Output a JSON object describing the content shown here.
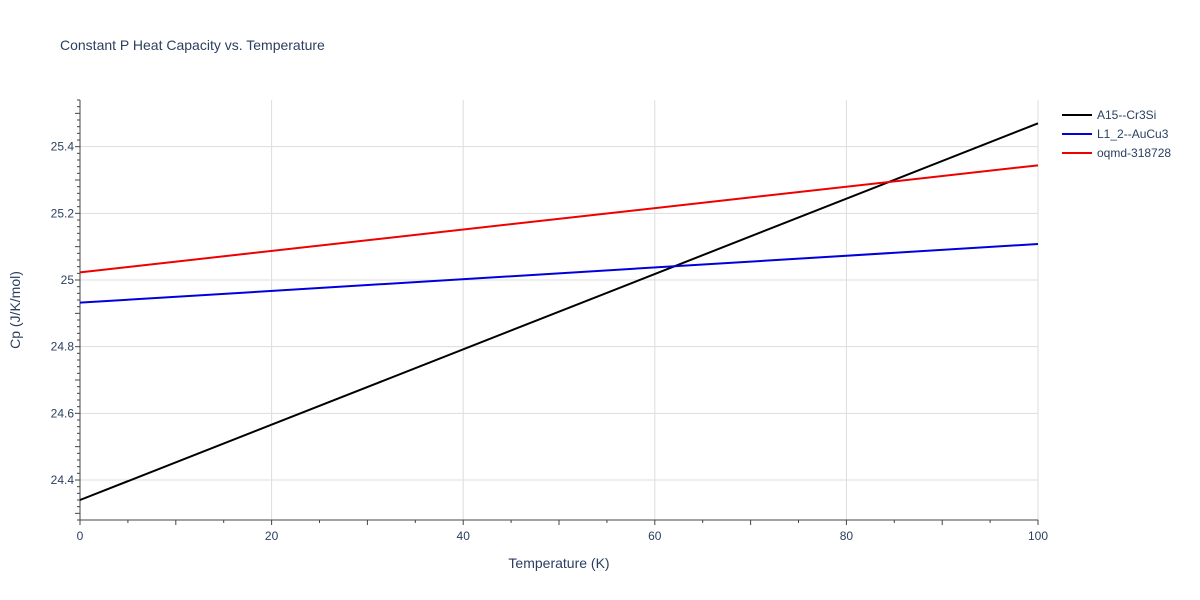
{
  "chart_data": {
    "type": "line",
    "title": "Constant P Heat Capacity vs. Temperature",
    "xlabel": "Temperature (K)",
    "ylabel": "Cp (J/K/mol)",
    "xlim": [
      0,
      100
    ],
    "ylim": [
      24.28,
      25.54
    ],
    "x_ticks": [
      0,
      20,
      40,
      60,
      80,
      100
    ],
    "x_tick_labels": [
      "0",
      "20",
      "40",
      "60",
      "80",
      "100"
    ],
    "y_ticks": [
      24.4,
      24.6,
      24.8,
      25.0,
      25.2,
      25.4
    ],
    "y_tick_labels": [
      "24.4",
      "24.6",
      "24.8",
      "25",
      "25.2",
      "25.4"
    ],
    "grid": true,
    "legend_position": "top-right",
    "series": [
      {
        "name": "A15--Cr3Si",
        "color": "#000000",
        "x": [
          0,
          100
        ],
        "y": [
          24.34,
          25.47
        ]
      },
      {
        "name": "L1_2--AuCu3",
        "color": "#0000dd",
        "x": [
          0,
          100
        ],
        "y": [
          24.932,
          25.108
        ]
      },
      {
        "name": "oqmd-318728",
        "color": "#ee0000",
        "x": [
          0,
          100
        ],
        "y": [
          25.023,
          25.344
        ]
      }
    ]
  }
}
